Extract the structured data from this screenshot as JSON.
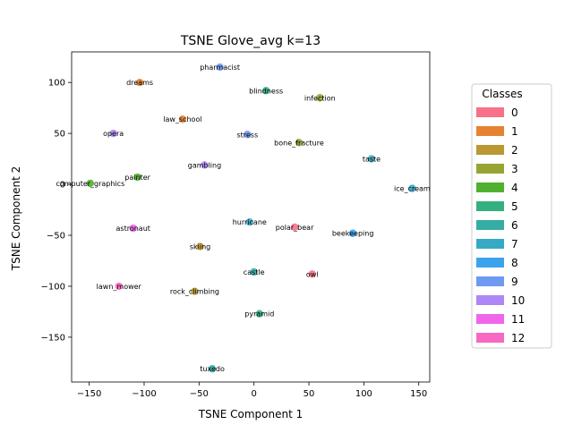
{
  "chart_data": {
    "type": "scatter",
    "title": "TSNE Glove_avg k=13",
    "xlabel": "TSNE Component 1",
    "ylabel": "TSNE Component 2",
    "xlim": [
      -166,
      160
    ],
    "ylim": [
      -194,
      130
    ],
    "xticks": [
      -150,
      -100,
      -50,
      0,
      50,
      100,
      150
    ],
    "yticks": [
      -150,
      -100,
      -50,
      0,
      50,
      100
    ],
    "grid": false,
    "legend": {
      "title": "Classes",
      "placement": "right, outside the axes",
      "entries": [
        "0",
        "1",
        "2",
        "3",
        "4",
        "5",
        "6",
        "7",
        "8",
        "9",
        "10",
        "11",
        "12"
      ]
    },
    "class_colors": [
      "#f77189",
      "#e68332",
      "#bb9832",
      "#97a431",
      "#50b131",
      "#34b07e",
      "#36ada4",
      "#38a9c5",
      "#3ba3ec",
      "#6e9af4",
      "#ae87f4",
      "#f066ea",
      "#f668c2"
    ],
    "points": [
      {
        "label": "pharmacist",
        "x": -31,
        "y": 115,
        "cls": 9
      },
      {
        "label": "dreams",
        "x": -104,
        "y": 100,
        "cls": 1
      },
      {
        "label": "blindness",
        "x": 11,
        "y": 92,
        "cls": 5
      },
      {
        "label": "infection",
        "x": 60,
        "y": 85,
        "cls": 3
      },
      {
        "label": "law_school",
        "x": -65,
        "y": 64,
        "cls": 1
      },
      {
        "label": "opera",
        "x": -128,
        "y": 50,
        "cls": 10
      },
      {
        "label": "stress",
        "x": -6,
        "y": 49,
        "cls": 9
      },
      {
        "label": "bone_fracture",
        "x": 41,
        "y": 41,
        "cls": 3
      },
      {
        "label": "taste",
        "x": 107,
        "y": 25,
        "cls": 7
      },
      {
        "label": "gambling",
        "x": -45,
        "y": 19,
        "cls": 10
      },
      {
        "label": "painter",
        "x": -106,
        "y": 7,
        "cls": 4
      },
      {
        "label": "computer_graphics",
        "x": -149,
        "y": 1,
        "cls": 4
      },
      {
        "label": "ice_cream",
        "x": 144,
        "y": -4,
        "cls": 7
      },
      {
        "label": "hurricane",
        "x": -4,
        "y": -37,
        "cls": 7
      },
      {
        "label": "polar_bear",
        "x": 37,
        "y": -42,
        "cls": 0
      },
      {
        "label": "astronaut",
        "x": -110,
        "y": -43,
        "cls": 11
      },
      {
        "label": "beekeeping",
        "x": 90,
        "y": -48,
        "cls": 8
      },
      {
        "label": "skiing",
        "x": -49,
        "y": -61,
        "cls": 2
      },
      {
        "label": "castle",
        "x": 0,
        "y": -86,
        "cls": 6
      },
      {
        "label": "owl",
        "x": 53,
        "y": -88,
        "cls": 0
      },
      {
        "label": "lawn_mower",
        "x": -123,
        "y": -100,
        "cls": 12
      },
      {
        "label": "rock_climbing",
        "x": -54,
        "y": -105,
        "cls": 2
      },
      {
        "label": "pyramid",
        "x": 5,
        "y": -127,
        "cls": 5
      },
      {
        "label": "tuxedo",
        "x": -38,
        "y": -181,
        "cls": 6
      }
    ]
  }
}
